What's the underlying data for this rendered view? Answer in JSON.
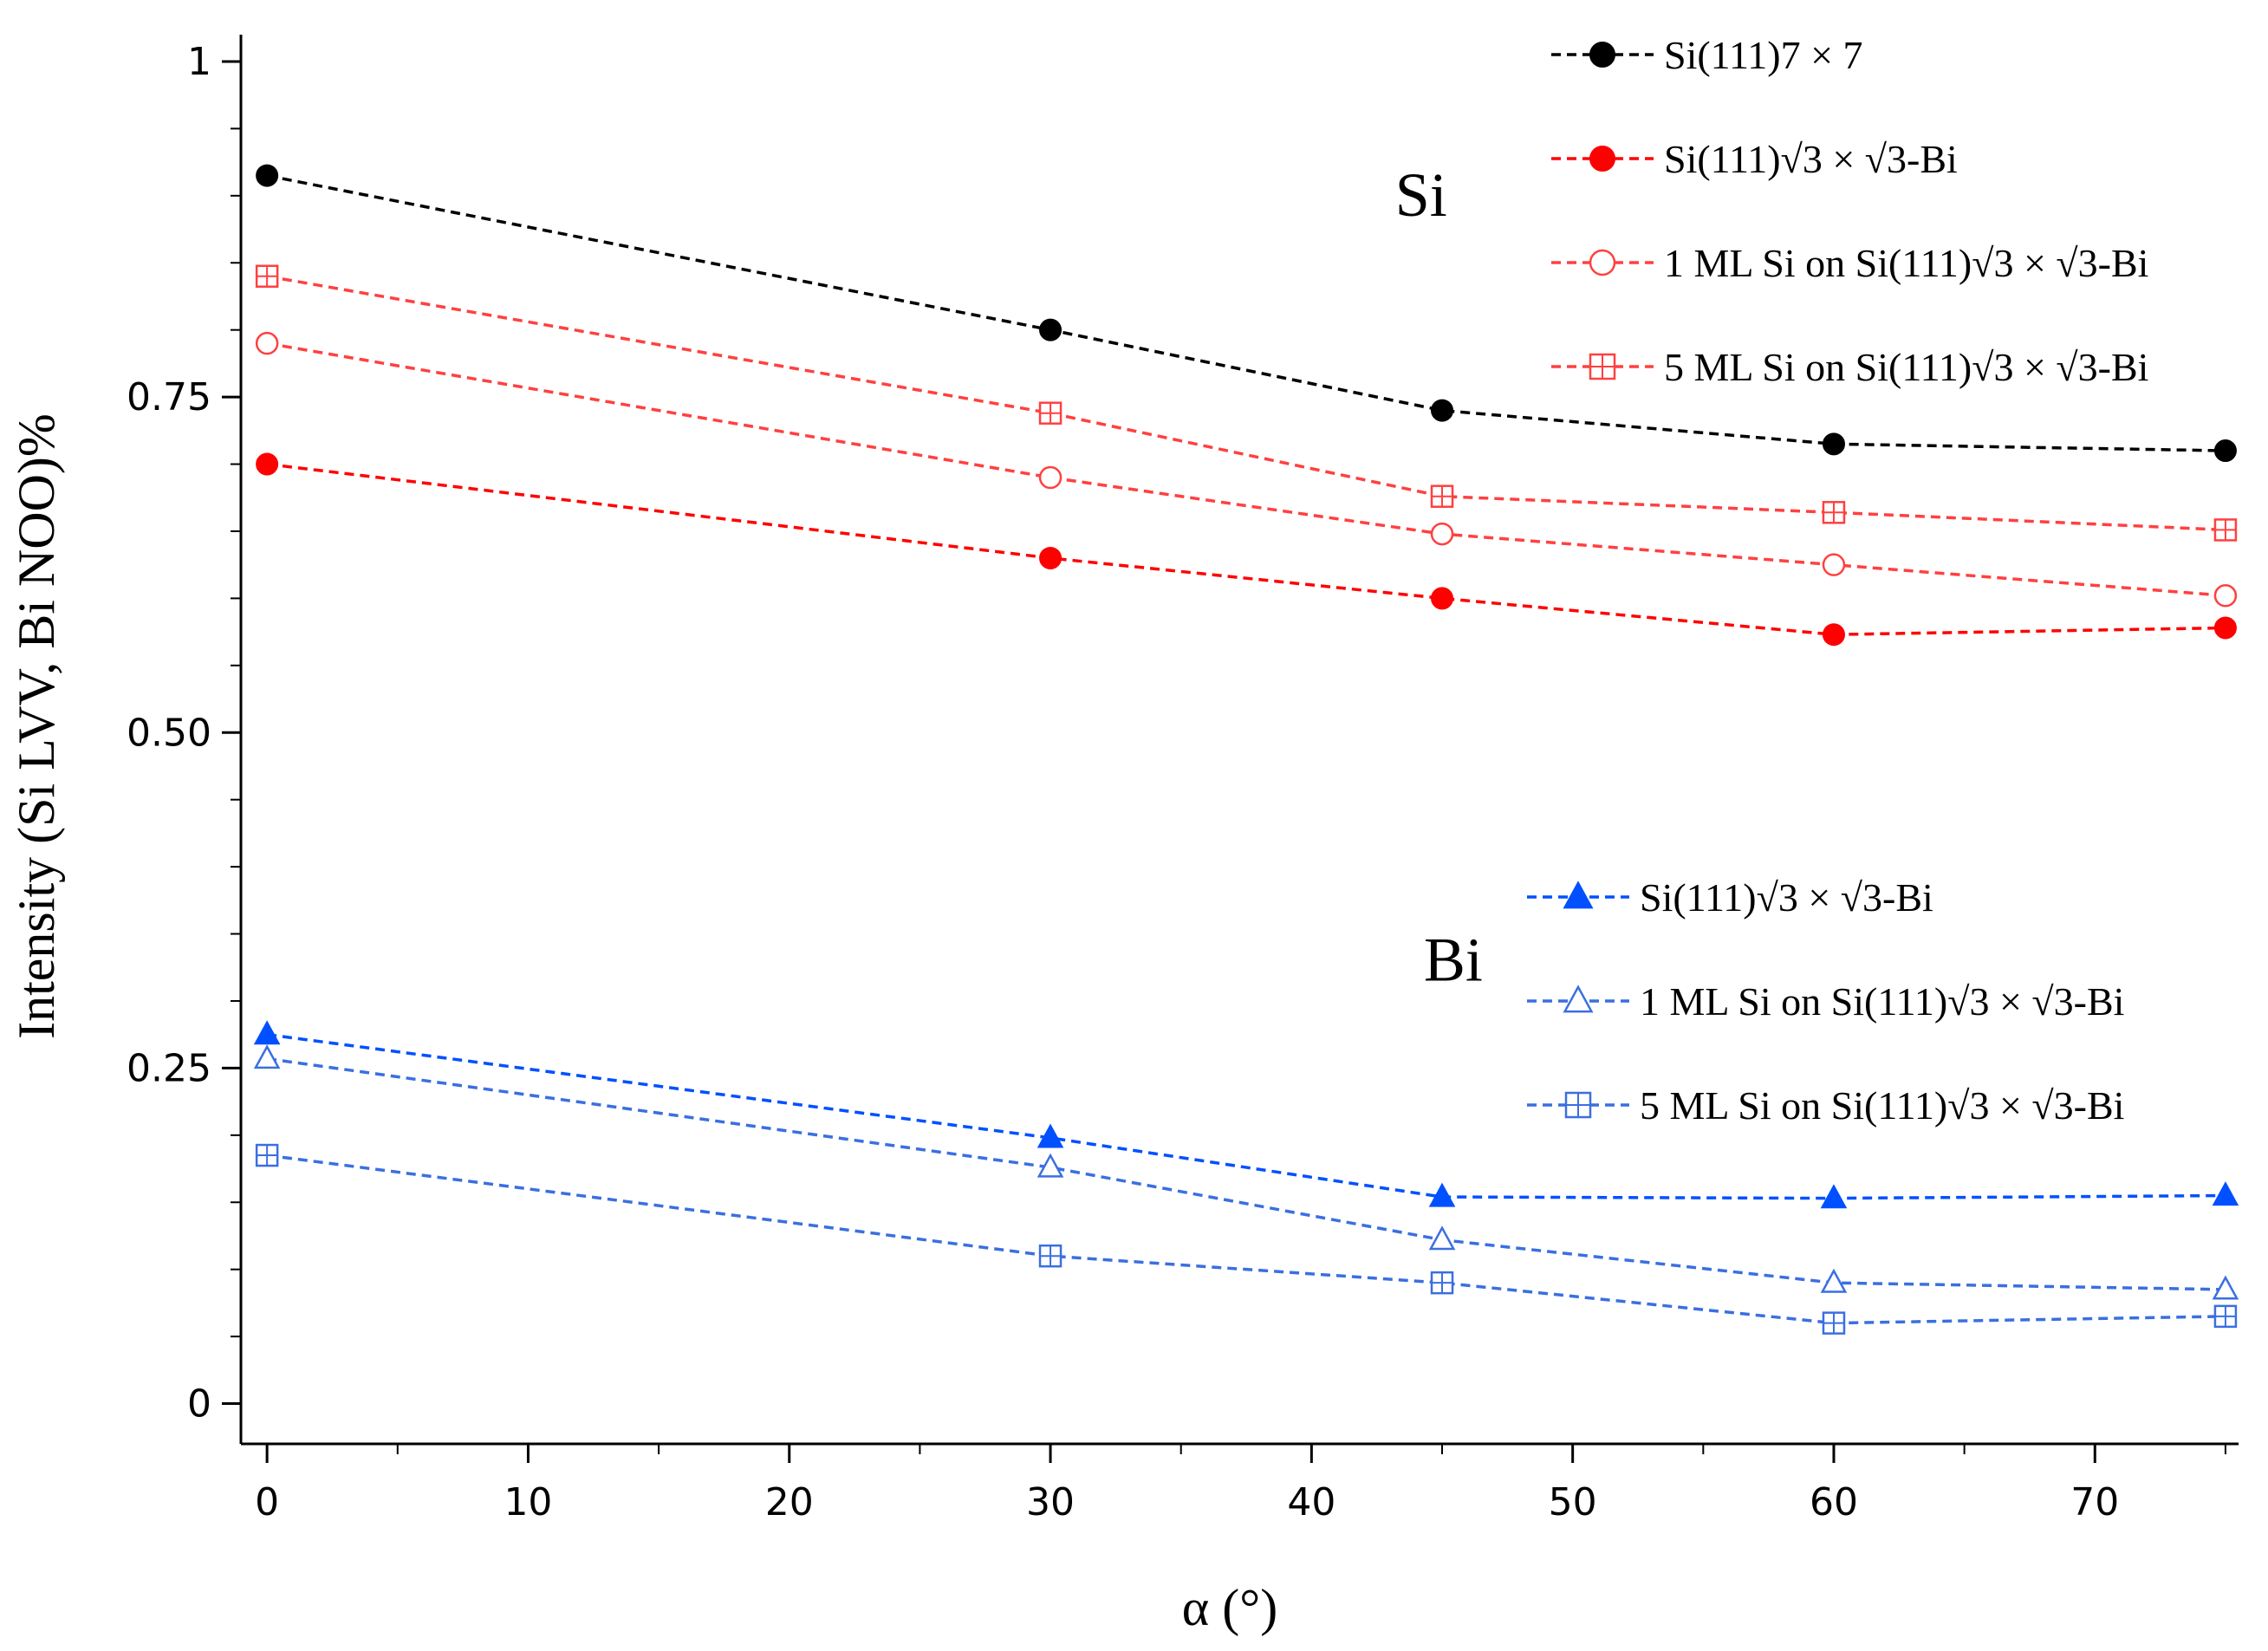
{
  "chart_data": {
    "type": "line",
    "xlabel": "α (°)",
    "ylabel": "Intensity (Si LVV, Bi NOO)%",
    "xlim": [
      -1,
      75.5
    ],
    "ylim": [
      -0.03,
      1.02
    ],
    "xticks": [
      0,
      10,
      20,
      30,
      40,
      50,
      60,
      70
    ],
    "xtick_labels": [
      "0",
      "10",
      "20",
      "30",
      "40",
      "50",
      "60",
      "70"
    ],
    "yticks": [
      0,
      0.25,
      0.5,
      0.75,
      1
    ],
    "ytick_labels": [
      "0",
      "0.25",
      "0.50",
      "0.75",
      "1"
    ],
    "grid": false,
    "x": [
      0,
      30,
      45,
      60,
      75
    ],
    "annotations": [
      {
        "text": "Si",
        "x": 43.2,
        "y": 0.885
      },
      {
        "text": "Bi",
        "x": 44.3,
        "y": 0.315
      }
    ],
    "legend_groups": [
      {
        "group": "Si",
        "position": "top-right"
      },
      {
        "group": "Bi",
        "position": "center-right"
      }
    ],
    "series": [
      {
        "name": "Si(111)7 × 7",
        "group": "Si",
        "color": "#000000",
        "marker": "filled-circle",
        "values": [
          0.915,
          0.8,
          0.74,
          0.715,
          0.71
        ]
      },
      {
        "name": "Si(111)√3 × √3-Bi",
        "group": "Si",
        "color": "#ff0000",
        "marker": "filled-circle",
        "values": [
          0.7,
          0.63,
          0.6,
          0.573,
          0.578
        ]
      },
      {
        "name": "1 ML Si on Si(111)√3 × √3-Bi",
        "group": "Si",
        "color": "#ff4040",
        "marker": "open-circle",
        "values": [
          0.79,
          0.69,
          0.648,
          0.625,
          0.602
        ]
      },
      {
        "name": "5 ML Si on Si(111)√3 × √3-Bi",
        "group": "Si",
        "color": "#ff4040",
        "marker": "crossed-square",
        "values": [
          0.84,
          0.738,
          0.676,
          0.664,
          0.651
        ]
      },
      {
        "name": "Si(111)√3 × √3-Bi",
        "group": "Bi",
        "color": "#0050ff",
        "marker": "filled-triangle",
        "values": [
          0.275,
          0.198,
          0.154,
          0.153,
          0.155
        ]
      },
      {
        "name": "1 ML Si on Si(111)√3 × √3-Bi",
        "group": "Bi",
        "color": "#3b6fe0",
        "marker": "open-triangle",
        "values": [
          0.257,
          0.176,
          0.122,
          0.09,
          0.085
        ]
      },
      {
        "name": "5 ML Si on Si(111)√3 × √3-Bi",
        "group": "Bi",
        "color": "#3b6fe0",
        "marker": "crossed-square",
        "values": [
          0.185,
          0.11,
          0.09,
          0.06,
          0.065
        ]
      }
    ]
  }
}
